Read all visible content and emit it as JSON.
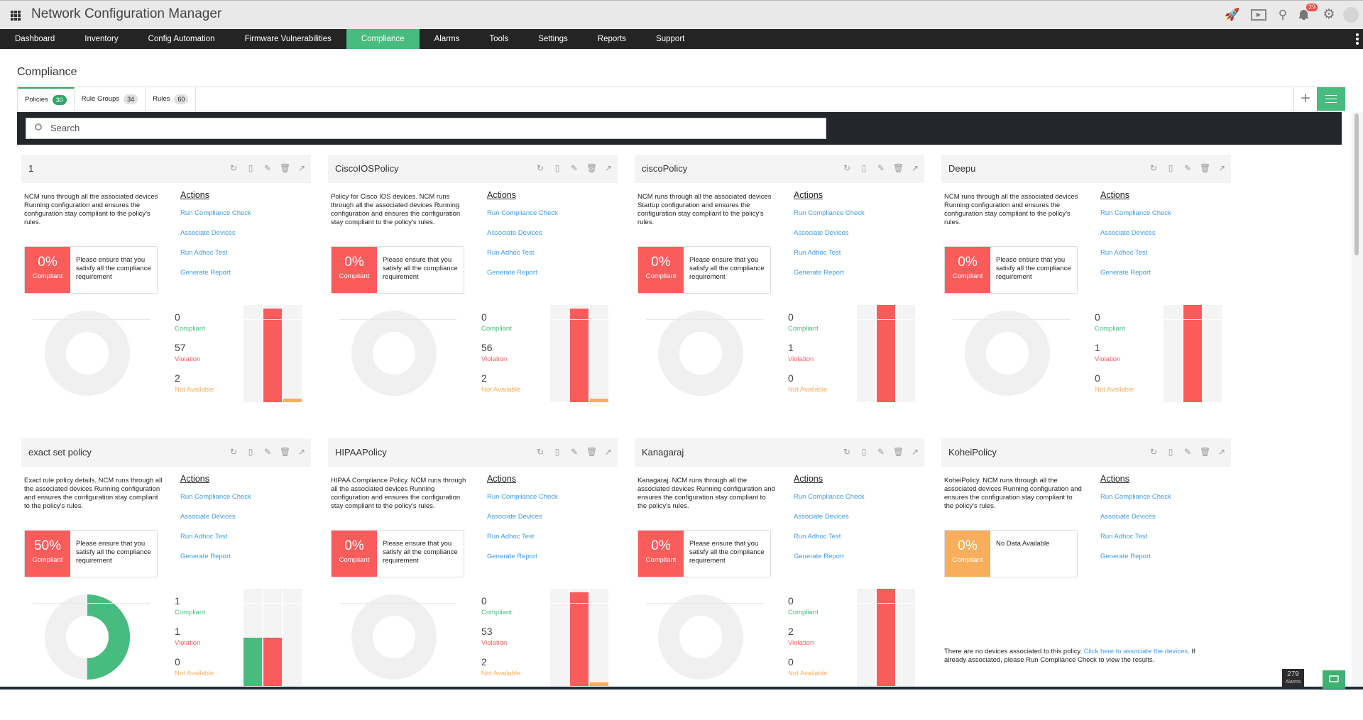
{
  "app": {
    "title": "Network Configuration Manager",
    "notification_count": "29"
  },
  "nav": [
    "Dashboard",
    "Inventory",
    "Config Automation",
    "Firmware Vulnerabilities",
    "Compliance",
    "Alarms",
    "Tools",
    "Settings",
    "Reports",
    "Support"
  ],
  "nav_active": "Compliance",
  "page": {
    "title": "Compliance"
  },
  "tabs": [
    {
      "label": "Policies",
      "count": "30"
    },
    {
      "label": "Rule Groups",
      "count": "34"
    },
    {
      "label": "Rules",
      "count": "60"
    }
  ],
  "search": {
    "placeholder": "Search"
  },
  "actions_label": "Actions",
  "action_links": [
    "Run Compliance Check",
    "Associate Devices",
    "Run Adhoc Test",
    "Generate Report"
  ],
  "stat_labels": {
    "compliant": "Compliant",
    "violation": "Violation",
    "not_available": "Not Available"
  },
  "colors": {
    "compliant": "#48bb7e",
    "violation": "#fa5b5b",
    "not_available": "#f9ae5b",
    "accent": "#48bb7e",
    "link": "#3d9be9"
  },
  "cards": [
    {
      "name": "1",
      "description": "NCM runs through all the associated devices Running configuration and ensures the configuration stay compliant to the policy's rules.",
      "percent": "0%",
      "percent_label": "Compliant",
      "message": "Please ensure that you satisfy all the compliance requirement",
      "compliant": 0,
      "violation": 57,
      "not_available": 2
    },
    {
      "name": "CiscoIOSPolicy",
      "description": "Policy for Cisco IOS devices. NCM runs through all the associated devices Running configuration and ensures the configuration stay compliant to the policy's rules.",
      "percent": "0%",
      "percent_label": "Compliant",
      "message": "Please ensure that you satisfy all the compliance requirement",
      "compliant": 0,
      "violation": 56,
      "not_available": 2
    },
    {
      "name": "ciscoPolicy",
      "description": "NCM runs through all the associated devices Startup configuration and ensures the configuration stay compliant to the policy's rules.",
      "percent": "0%",
      "percent_label": "Compliant",
      "message": "Please ensure that you satisfy all the compliance requirement",
      "compliant": 0,
      "violation": 1,
      "not_available": 0
    },
    {
      "name": "Deepu",
      "description": "NCM runs through all the associated devices Running configuration and ensures the configuration stay compliant to the policy's rules.",
      "percent": "0%",
      "percent_label": "Compliant",
      "message": "Please ensure that you satisfy all the compliance requirement",
      "compliant": 0,
      "violation": 1,
      "not_available": 0
    },
    {
      "name": "exact set policy",
      "description": "Exact rule policy details. NCM runs through all the associated devices Running configuration and ensures the configuration stay compliant to the policy's rules.",
      "percent": "50%",
      "percent_label": "Compliant",
      "message": "Please ensure that you satisfy all the compliance requirement",
      "compliant": 1,
      "violation": 1,
      "not_available": 0
    },
    {
      "name": "HIPAAPolicy",
      "description": "HIPAA Compliance Policy. NCM runs through all the associated devices Running configuration and ensures the configuration stay compliant to the policy's rules.",
      "percent": "0%",
      "percent_label": "Compliant",
      "message": "Please ensure that you satisfy all the compliance requirement",
      "compliant": 0,
      "violation": 53,
      "not_available": 2
    },
    {
      "name": "Kanagaraj",
      "description": "Kanagaraj. NCM runs through all the associated devices Running configuration and ensures the configuration stay compliant to the policy's rules.",
      "percent": "0%",
      "percent_label": "Compliant",
      "message": "Please ensure that you satisfy all the compliance requirement",
      "compliant": 0,
      "violation": 2,
      "not_available": 0
    },
    {
      "name": "KoheiPolicy",
      "description": "KoheiPolicy. NCM runs through all the associated devices Running configuration and ensures the configuration stay compliant to the policy's rules.",
      "percent": "0%",
      "percent_label": "Compliant",
      "message": "No Data Available",
      "no_data": true,
      "no_devices_text": "There are no devices associated to this policy.",
      "no_devices_link": "Click here to associate the devices.",
      "no_devices_after": "If already associated, please Run Compliance Check to view the results."
    }
  ],
  "footer": {
    "alarms_count": "279",
    "alarms_label": "Alarms"
  }
}
